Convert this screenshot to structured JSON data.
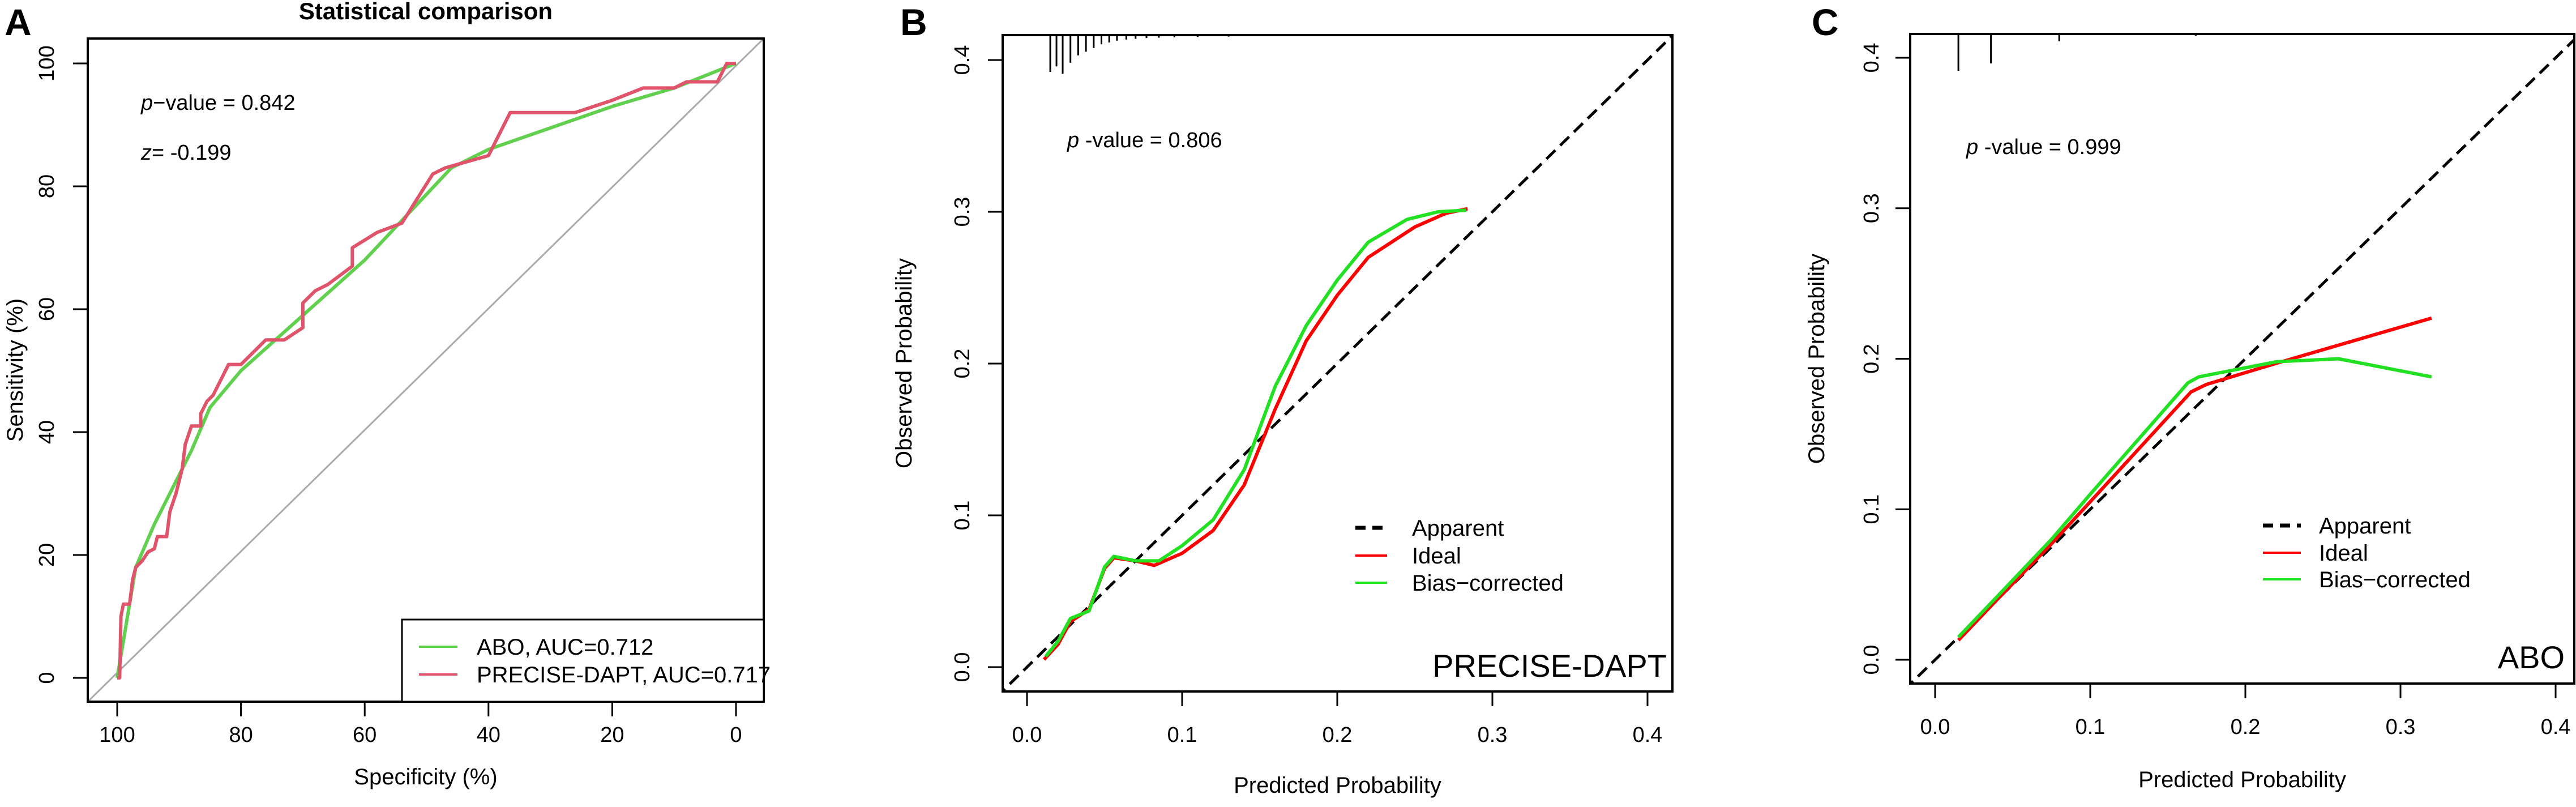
{
  "chart_data": [
    {
      "panel": "A",
      "type": "line",
      "title": "Statistical comparison",
      "xlabel": "Specificity (%)",
      "ylabel": "Sensitivity (%)",
      "xlim": [
        100,
        0
      ],
      "ylim": [
        0,
        100
      ],
      "xticks": [
        "100",
        "80",
        "60",
        "40",
        "20",
        "0"
      ],
      "yticks": [
        "0",
        "20",
        "40",
        "60",
        "80",
        "100"
      ],
      "annotations": {
        "p_prefix": "p",
        "p_text": "−value = 0.842",
        "z_prefix": "z",
        "z_text": "= -0.199"
      },
      "legend_position": "bottom-right",
      "reference_line": "diagonal",
      "series": [
        {
          "name": "ABO, AUC=0.712",
          "color": "#61D04F",
          "x": [
            100,
            97,
            94,
            88,
            85,
            80,
            70,
            60,
            46,
            40,
            20,
            10,
            0
          ],
          "y": [
            0,
            18,
            25,
            37,
            44,
            50,
            59,
            68,
            83,
            86,
            93,
            96,
            100
          ]
        },
        {
          "name": "PRECISE-DAPT, AUC=0.717",
          "color": "#DF536B",
          "x": [
            100,
            99.6,
            99.4,
            99,
            98,
            97.5,
            97,
            96,
            95,
            94,
            93.5,
            92,
            91.5,
            90.5,
            89.5,
            89,
            88,
            86.5,
            86.5,
            85.5,
            84.5,
            83.5,
            82,
            80,
            77,
            76,
            73,
            70,
            70,
            68,
            66,
            62,
            62,
            58,
            54,
            49,
            47,
            40,
            36.5,
            26,
            20,
            15,
            10,
            8,
            3,
            1.5,
            0
          ],
          "y": [
            0,
            0,
            10,
            12,
            12,
            16,
            18,
            19,
            20.5,
            21,
            23,
            23,
            27,
            30,
            34,
            38,
            41,
            41,
            43,
            45,
            46,
            48,
            51,
            51,
            54,
            55,
            55,
            57,
            61,
            63,
            64,
            67,
            70,
            72.5,
            74,
            82,
            83,
            85,
            92,
            92,
            94,
            96,
            96,
            97,
            97,
            100,
            100
          ]
        }
      ]
    },
    {
      "panel": "B",
      "type": "line",
      "model": "PRECISE-DAPT",
      "xlabel": "Predicted Probability",
      "ylabel": "Observed Probability",
      "xlim": [
        0,
        0.4
      ],
      "ylim": [
        0,
        0.4
      ],
      "xticks": [
        "0.0",
        "0.1",
        "0.2",
        "0.3",
        "0.4"
      ],
      "yticks": [
        "0.0",
        "0.1",
        "0.2",
        "0.3",
        "0.4"
      ],
      "annotations": {
        "p_prefix": "p",
        "p_text": " -value = 0.806"
      },
      "legend_position": "bottom-right",
      "rug_x": [
        0.015,
        0.019,
        0.023,
        0.028,
        0.033,
        0.038,
        0.043,
        0.048,
        0.053,
        0.058,
        0.064,
        0.07,
        0.077,
        0.085,
        0.095,
        0.11,
        0.13,
        0.16,
        0.2,
        0.25
      ],
      "rug_h": [
        1,
        0.85,
        1.05,
        0.75,
        0.55,
        0.45,
        0.35,
        0.25,
        0.2,
        0.15,
        0.12,
        0.1,
        0.08,
        0.07,
        0.06,
        0.05,
        0.04,
        0.03,
        0.03,
        0.02
      ],
      "series": [
        {
          "name": "Apparent",
          "color": "#000000",
          "dash": true,
          "x": [
            -0.02,
            0.42
          ],
          "y": [
            -0.02,
            0.42
          ]
        },
        {
          "name": "Ideal",
          "color": "#FF0000",
          "x": [
            0.011,
            0.02,
            0.028,
            0.04,
            0.05,
            0.056,
            0.07,
            0.082,
            0.1,
            0.12,
            0.14,
            0.16,
            0.18,
            0.2,
            0.22,
            0.25,
            0.27,
            0.284
          ],
          "y": [
            0.005,
            0.015,
            0.03,
            0.038,
            0.065,
            0.072,
            0.07,
            0.067,
            0.075,
            0.09,
            0.12,
            0.17,
            0.215,
            0.245,
            0.27,
            0.29,
            0.299,
            0.302
          ]
        },
        {
          "name": "Bias−corrected",
          "color": "#22E022",
          "x": [
            0.012,
            0.02,
            0.028,
            0.04,
            0.05,
            0.056,
            0.07,
            0.085,
            0.1,
            0.12,
            0.14,
            0.16,
            0.18,
            0.2,
            0.22,
            0.245,
            0.265,
            0.283
          ],
          "y": [
            0.007,
            0.017,
            0.032,
            0.037,
            0.066,
            0.073,
            0.07,
            0.07,
            0.08,
            0.097,
            0.13,
            0.185,
            0.225,
            0.255,
            0.28,
            0.295,
            0.3,
            0.301
          ]
        }
      ]
    },
    {
      "panel": "C",
      "type": "line",
      "model": "ABO",
      "xlabel": "Predicted Probability",
      "ylabel": "Observed Probability",
      "xlim": [
        0,
        0.4
      ],
      "ylim": [
        0,
        0.4
      ],
      "xticks": [
        "0.0",
        "0.1",
        "0.2",
        "0.3",
        "0.4"
      ],
      "yticks": [
        "0.0",
        "0.1",
        "0.2",
        "0.3",
        "0.4"
      ],
      "annotations": {
        "p_prefix": "p",
        "p_text": " -value = 0.999"
      },
      "legend_position": "bottom-right",
      "rug_x": [
        0.015,
        0.036,
        0.08,
        0.168
      ],
      "rug_h": [
        1,
        0.8,
        0.2,
        0.05
      ],
      "series": [
        {
          "name": "Apparent",
          "color": "#000000",
          "dash": true,
          "x": [
            -0.02,
            0.42
          ],
          "y": [
            -0.02,
            0.42
          ]
        },
        {
          "name": "Ideal",
          "color": "#FF0000",
          "x": [
            0.015,
            0.04,
            0.075,
            0.1,
            0.165,
            0.175,
            0.22,
            0.32
          ],
          "y": [
            0.013,
            0.04,
            0.077,
            0.105,
            0.178,
            0.183,
            0.197,
            0.227
          ]
        },
        {
          "name": "Bias−corrected",
          "color": "#22E022",
          "x": [
            0.015,
            0.04,
            0.075,
            0.1,
            0.163,
            0.17,
            0.22,
            0.26,
            0.3,
            0.32
          ],
          "y": [
            0.015,
            0.042,
            0.08,
            0.11,
            0.184,
            0.188,
            0.198,
            0.2,
            0.192,
            0.188
          ]
        }
      ]
    }
  ]
}
